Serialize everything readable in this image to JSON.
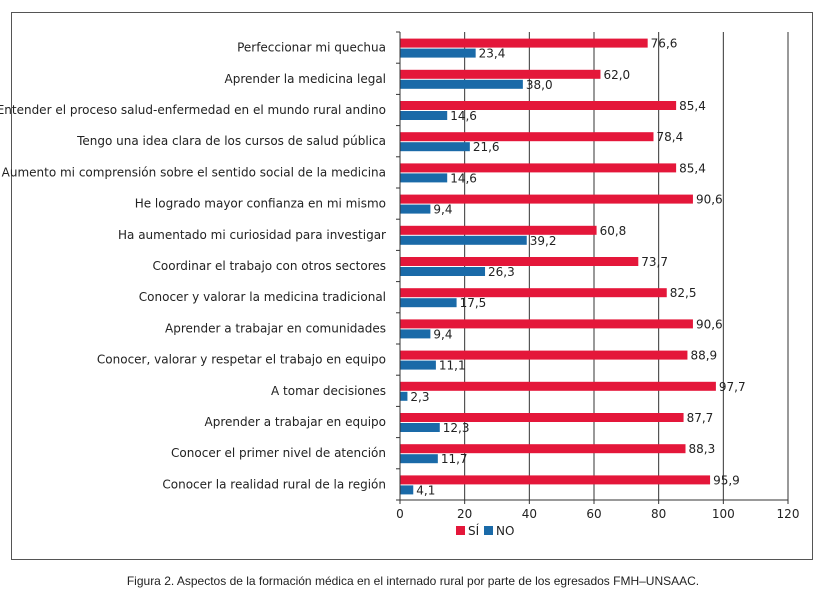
{
  "caption": "Figura 2. Aspectos de la formación médica en el internado rural por parte de los egresados FMH–UNSAAC.",
  "chart_data": {
    "type": "bar",
    "orientation": "horizontal",
    "title": "",
    "xlabel": "",
    "ylabel": "",
    "xlim": [
      0,
      120
    ],
    "xticks": [
      0,
      20,
      40,
      60,
      80,
      100,
      120
    ],
    "grid": "vertical",
    "legend_position": "bottom",
    "categories": [
      "Perfeccionar mi quechua",
      "Aprender la medicina legal",
      "Entender el proceso salud-enfermedad en el mundo rural andino",
      "Tengo una idea clara de los cursos de salud pública",
      "Aumento mi comprensión sobre el sentido social de la medicina",
      "He logrado mayor confianza en mi mismo",
      "Ha aumentado mi curiosidad para investigar",
      "Coordinar el trabajo con otros sectores",
      "Conocer y valorar la medicina tradicional",
      "Aprender a trabajar en comunidades",
      "Conocer, valorar y respetar el trabajo en equipo",
      "A tomar decisiones",
      "Aprender a trabajar en equipo",
      "Conocer el primer nivel de atención",
      "Conocer la realidad rural de la región"
    ],
    "series": [
      {
        "name": "SÍ",
        "color": "#e4173a",
        "values": [
          76.6,
          62.0,
          85.4,
          78.4,
          85.4,
          90.6,
          60.8,
          73.7,
          82.5,
          90.6,
          88.9,
          97.7,
          87.7,
          88.3,
          95.9
        ],
        "labels": [
          "76,6",
          "62,0",
          "85,4",
          "78,4",
          "85,4",
          "90,6",
          "60,8",
          "73,7",
          "82,5",
          "90,6",
          "88,9",
          "97,7",
          "87,7",
          "88,3",
          "95,9"
        ]
      },
      {
        "name": "NO",
        "color": "#1a6aa8",
        "values": [
          23.4,
          38.0,
          14.6,
          21.6,
          14.6,
          9.4,
          39.2,
          26.3,
          17.5,
          9.4,
          11.1,
          2.3,
          12.3,
          11.7,
          4.1
        ],
        "labels": [
          "23,4",
          "38,0",
          "14,6",
          "21,6",
          "14,6",
          "9,4",
          "39,2",
          "26,3",
          "17,5",
          "9,4",
          "11,1",
          "2,3",
          "12,3",
          "11,7",
          "4,1"
        ]
      }
    ],
    "tick_labels": [
      "0",
      "20",
      "40",
      "60",
      "80",
      "100",
      "120"
    ]
  }
}
